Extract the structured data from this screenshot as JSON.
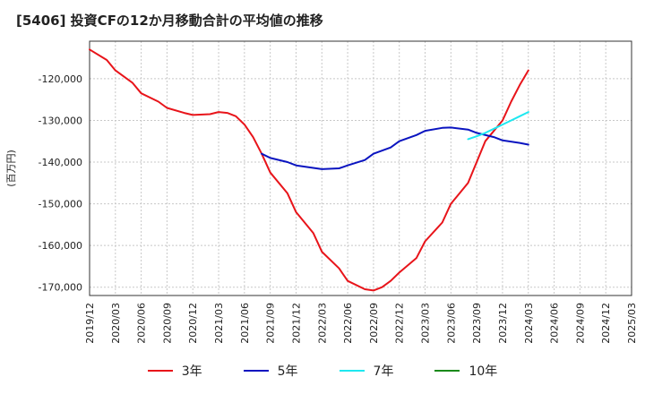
{
  "title": "[5406]  投資CFの12か月移動合計の平均値の推移",
  "chart_data": {
    "type": "line",
    "ylabel": "(百万円)",
    "ylim": [
      -172000,
      -111000
    ],
    "yticks": [
      -120000,
      -130000,
      -140000,
      -150000,
      -160000,
      -170000
    ],
    "ytick_labels": [
      "-120,000",
      "-130,000",
      "-140,000",
      "-150,000",
      "-160,000",
      "-170,000"
    ],
    "xticks": [
      "2019/12",
      "2020/03",
      "2020/06",
      "2020/09",
      "2020/12",
      "2021/03",
      "2021/06",
      "2021/09",
      "2021/12",
      "2022/03",
      "2022/06",
      "2022/09",
      "2022/12",
      "2023/03",
      "2023/06",
      "2023/09",
      "2023/12",
      "2024/03",
      "2024/06",
      "2024/09",
      "2024/12",
      "2025/03"
    ],
    "grid": true,
    "legend_position": "bottom",
    "series": [
      {
        "name": "3年",
        "color": "#e8141a",
        "points": [
          [
            "2019/12",
            -113000
          ],
          [
            "2020/02",
            -115500
          ],
          [
            "2020/03",
            -118000
          ],
          [
            "2020/05",
            -121000
          ],
          [
            "2020/06",
            -123500
          ],
          [
            "2020/08",
            -125500
          ],
          [
            "2020/09",
            -127000
          ],
          [
            "2020/11",
            -128200
          ],
          [
            "2020/12",
            -128700
          ],
          [
            "2021/02",
            -128500
          ],
          [
            "2021/03",
            -128000
          ],
          [
            "2021/04",
            -128200
          ],
          [
            "2021/05",
            -129000
          ],
          [
            "2021/06",
            -131000
          ],
          [
            "2021/07",
            -134000
          ],
          [
            "2021/08",
            -138000
          ],
          [
            "2021/09",
            -142500
          ],
          [
            "2021/11",
            -147500
          ],
          [
            "2021/12",
            -152000
          ],
          [
            "2022/02",
            -157000
          ],
          [
            "2022/03",
            -161500
          ],
          [
            "2022/05",
            -165500
          ],
          [
            "2022/06",
            -168500
          ],
          [
            "2022/08",
            -170500
          ],
          [
            "2022/09",
            -170800
          ],
          [
            "2022/10",
            -170000
          ],
          [
            "2022/11",
            -168500
          ],
          [
            "2022/12",
            -166500
          ],
          [
            "2023/02",
            -163000
          ],
          [
            "2023/03",
            -159000
          ],
          [
            "2023/05",
            -154500
          ],
          [
            "2023/06",
            -150000
          ],
          [
            "2023/08",
            -145000
          ],
          [
            "2023/09",
            -140000
          ],
          [
            "2023/10",
            -135000
          ],
          [
            "2023/12",
            -130000
          ],
          [
            "2024/01",
            -125500
          ],
          [
            "2024/02",
            -121500
          ],
          [
            "2024/03",
            -118000
          ]
        ]
      },
      {
        "name": "5年",
        "color": "#0a14c0",
        "points": [
          [
            "2021/08",
            -138000
          ],
          [
            "2021/09",
            -139000
          ],
          [
            "2021/11",
            -140000
          ],
          [
            "2021/12",
            -140800
          ],
          [
            "2022/02",
            -141400
          ],
          [
            "2022/03",
            -141700
          ],
          [
            "2022/05",
            -141500
          ],
          [
            "2022/06",
            -140800
          ],
          [
            "2022/08",
            -139500
          ],
          [
            "2022/09",
            -138000
          ],
          [
            "2022/11",
            -136500
          ],
          [
            "2022/12",
            -135000
          ],
          [
            "2023/02",
            -133500
          ],
          [
            "2023/03",
            -132500
          ],
          [
            "2023/05",
            -131800
          ],
          [
            "2023/06",
            -131700
          ],
          [
            "2023/08",
            -132200
          ],
          [
            "2023/09",
            -133000
          ],
          [
            "2023/11",
            -134000
          ],
          [
            "2023/12",
            -134800
          ],
          [
            "2024/02",
            -135400
          ],
          [
            "2024/03",
            -135800
          ]
        ]
      },
      {
        "name": "7年",
        "color": "#1ee8f0",
        "points": [
          [
            "2023/08",
            -134500
          ],
          [
            "2023/09",
            -133800
          ],
          [
            "2023/10",
            -133000
          ],
          [
            "2023/11",
            -132000
          ],
          [
            "2023/12",
            -131000
          ],
          [
            "2024/01",
            -130000
          ],
          [
            "2024/02",
            -129000
          ],
          [
            "2024/03",
            -128000
          ]
        ]
      },
      {
        "name": "10年",
        "color": "#1a8a1a",
        "points": []
      }
    ]
  }
}
